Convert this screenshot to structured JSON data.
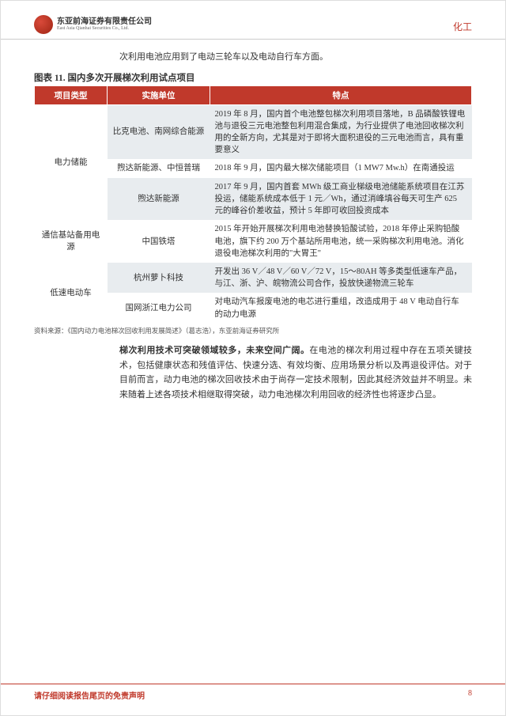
{
  "header": {
    "company_cn": "东亚前海证券有限责任公司",
    "company_en": "East Asia Qianhai Securities Co., Ltd.",
    "sector": "化工"
  },
  "intro": "次利用电池应用到了电动三轮车以及电动自行车方面。",
  "table": {
    "title": "图表 11. 国内多次开展梯次利用试点项目",
    "columns": [
      "项目类型",
      "实施单位",
      "特点"
    ],
    "groups": [
      {
        "category": "电力储能",
        "rows": [
          {
            "unit": "比克电池、南网综合能源",
            "feature": "2019 年 8 月，国内首个电池整包梯次利用项目落地，B 品磷酸铁锂电池与退役三元电池整包利用混合集成，为行业提供了电池回收梯次利用的全新方向，尤其是对于即将大面积退役的三元电池而言，具有重要意义",
            "alt": true
          },
          {
            "unit": "煦达新能源、中恒普瑞",
            "feature": "2018 年 9 月，国内最大梯次储能项目（1 MW7 Mw.h）在南通投运",
            "alt": false
          },
          {
            "unit": "煦达新能源",
            "feature": "2017 年 9 月，国内首套 MWh 级工商业梯级电池储能系统项目在江苏投运，储能系统成本低于 1 元／Wh，通过消峰填谷每天可生产 625 元的峰谷价差收益，预计 5 年即可收回投资成本",
            "alt": true
          }
        ]
      },
      {
        "category": "通信基站备用电源",
        "rows": [
          {
            "unit": "中国铁塔",
            "feature": "2015 年开始开展梯次利用电池替换铅酸试验，2018 年停止采购铅酸电池，旗下约 200 万个基站所用电池，统一采购梯次利用电池。消化退役电池梯次利用的\"大胃王\"",
            "alt": false
          }
        ]
      },
      {
        "category": "低速电动车",
        "rows": [
          {
            "unit": "杭州萝卜科技",
            "feature": "开发出 36 V／48 V／60 V／72 V，15～80AH 等多类型低速车产品，与江、浙、沪、皖物流公司合作，投放快递物流三轮车",
            "alt": true
          },
          {
            "unit": "国网浙江电力公司",
            "feature": "对电动汽车报废电池的电芯进行重组，改造成用于 48 V 电动自行车的动力电源",
            "alt": false
          }
        ]
      }
    ],
    "source": "资料来源：《国内动力电池梯次回收利用发展简述》（葛志浩），东亚前海证券研究所"
  },
  "paragraph": {
    "lead": "梯次利用技术可突破领域较多，未来空间广阔。",
    "body": "在电池的梯次利用过程中存在五项关键技术，包括健康状态和残值评估、快速分选、有效均衡、应用场景分析以及再退役评估。对于目前而言，动力电池的梯次回收技术由于尚存一定技术限制，因此其经济效益并不明显。未来随着上述各项技术相继取得突破，动力电池梯次利用回收的经济性也将逐步凸显。"
  },
  "footer": {
    "disclaimer": "请仔细阅读报告尾页的免责声明",
    "page": "8"
  },
  "colors": {
    "brand_red": "#c0392b",
    "row_alt_bg": "#e8ecef",
    "text": "#333333"
  }
}
